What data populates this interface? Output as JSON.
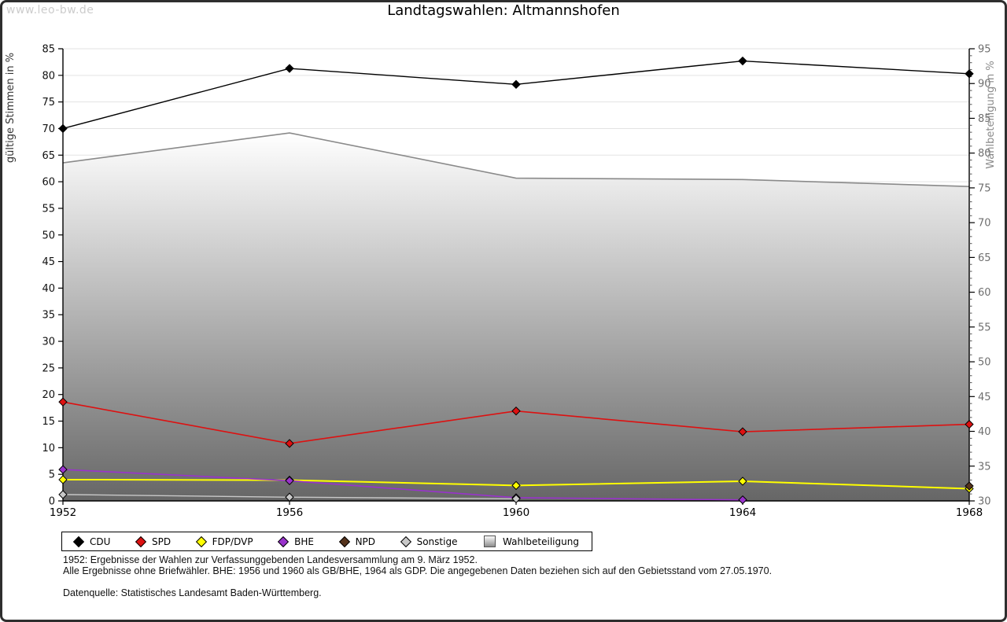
{
  "watermark": "www.leo-bw.de",
  "title": "Landtagswahlen: Altmannshofen",
  "chart_data": {
    "type": "line",
    "x": [
      1952,
      1956,
      1960,
      1964,
      1968
    ],
    "left_axis": {
      "label": "gültige Stimmen in %",
      "min": 0,
      "max": 85,
      "step": 5
    },
    "right_axis": {
      "label": "Wahlbeteiligung in %",
      "min": 30,
      "max": 95,
      "step": 5,
      "minor_step": 1
    },
    "grid": true,
    "legend_position": "bottom",
    "series": [
      {
        "name": "CDU",
        "color": "#000000",
        "axis": "left",
        "values": [
          70.0,
          81.3,
          78.3,
          82.7,
          80.3
        ]
      },
      {
        "name": "SPD",
        "color": "#dd1111",
        "axis": "left",
        "values": [
          18.6,
          10.8,
          16.9,
          13.0,
          14.4
        ]
      },
      {
        "name": "FDP/DVP",
        "color": "#ffff00",
        "axis": "left",
        "values": [
          4.0,
          3.9,
          2.9,
          3.7,
          2.3
        ]
      },
      {
        "name": "BHE",
        "color": "#9933cc",
        "axis": "left",
        "values": [
          5.9,
          3.8,
          0.6,
          0.2,
          null
        ]
      },
      {
        "name": "NPD",
        "color": "#55331c",
        "axis": "left",
        "values": [
          null,
          null,
          null,
          null,
          2.8
        ]
      },
      {
        "name": "Sonstige",
        "color": "#c8c8c8",
        "axis": "left",
        "values": [
          1.2,
          0.7,
          0.4,
          null,
          null
        ]
      }
    ],
    "area_series": {
      "name": "Wahlbeteiligung",
      "axis": "right",
      "values": [
        78.6,
        82.9,
        76.4,
        76.2,
        75.2
      ],
      "border_color": "#8a8a8a",
      "fill_top": "#ffffff",
      "fill_bottom": "#666666"
    }
  },
  "footnotes": {
    "line1": "1952: Ergebnisse der Wahlen zur Verfassunggebenden Landesversammlung am 9. März 1952.",
    "line2": "Alle Ergebnisse ohne Briefwähler. BHE: 1956 und 1960 als GB/BHE, 1964 als GDP. Die angegebenen Daten beziehen sich auf den Gebietsstand vom 27.05.1970.",
    "source": "Datenquelle: Statistisches Landesamt Baden-Württemberg."
  }
}
